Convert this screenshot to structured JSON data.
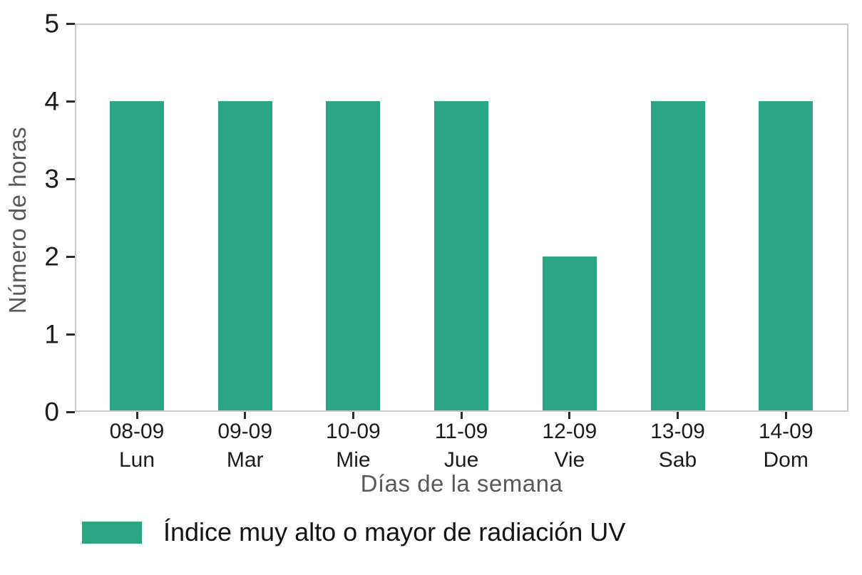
{
  "chart_data": {
    "type": "bar",
    "title": "",
    "xlabel": "Días de la semana",
    "ylabel": "Número de horas",
    "categories": [
      {
        "date": "08-09",
        "day": "Lun"
      },
      {
        "date": "09-09",
        "day": "Mar"
      },
      {
        "date": "10-09",
        "day": "Mie"
      },
      {
        "date": "11-09",
        "day": "Jue"
      },
      {
        "date": "12-09",
        "day": "Vie"
      },
      {
        "date": "13-09",
        "day": "Sab"
      },
      {
        "date": "14-09",
        "day": "Dom"
      }
    ],
    "values": [
      4,
      4,
      4,
      4,
      2,
      4,
      4
    ],
    "ylim": [
      0,
      5
    ],
    "yticks": [
      0,
      1,
      2,
      3,
      4,
      5
    ],
    "grid": false,
    "legend": {
      "position": "bottom-left",
      "label": "Índice muy alto o mayor de radiación UV"
    },
    "colors": {
      "bar": "#2aa685",
      "spine": "#cbcbcb",
      "tick_label": "#1c1c1c",
      "axis_label": "#595959"
    }
  }
}
